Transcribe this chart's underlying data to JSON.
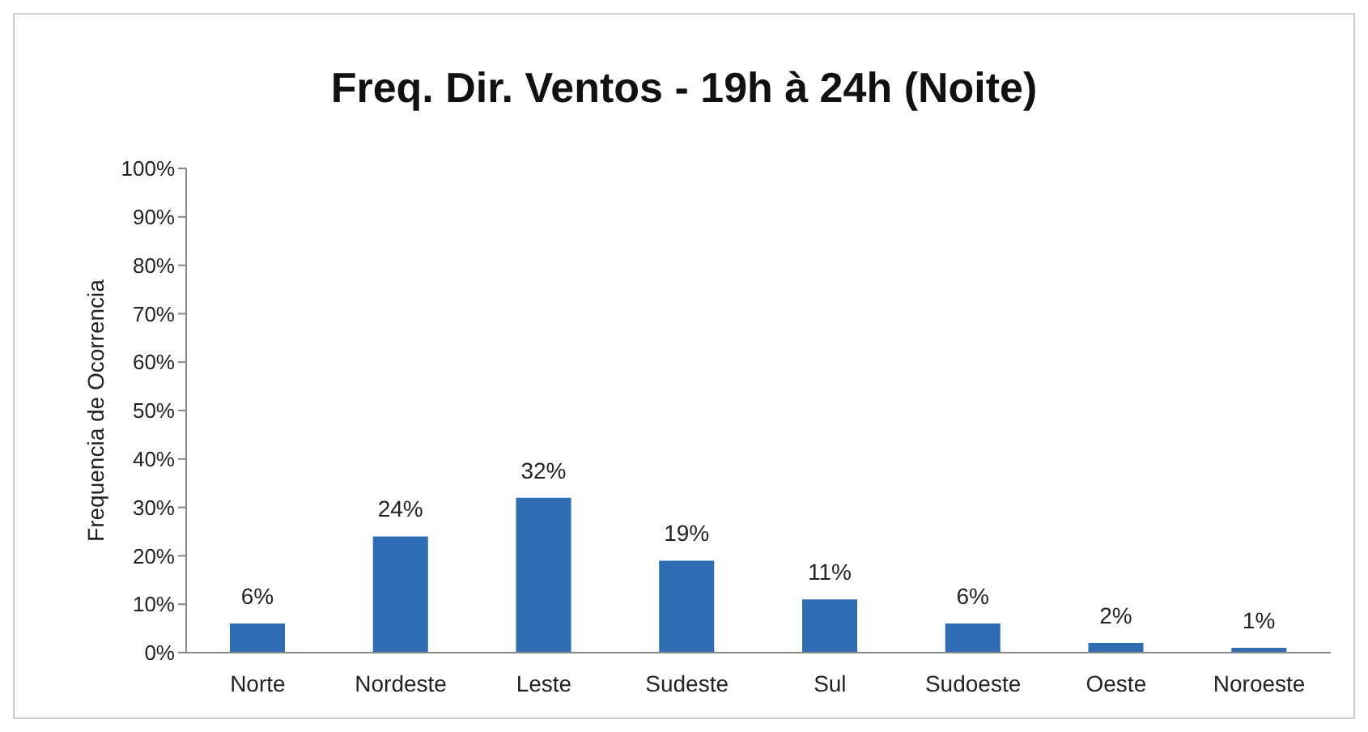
{
  "chart_data": {
    "type": "bar",
    "title": "Freq. Dir. Ventos - 19h à 24h (Noite)",
    "ylabel": "Frequencia de Ocorrencia",
    "categories": [
      "Norte",
      "Nordeste",
      "Leste",
      "Sudeste",
      "Sul",
      "Sudoeste",
      "Oeste",
      "Noroeste"
    ],
    "values": [
      6,
      24,
      32,
      19,
      11,
      6,
      2,
      1
    ],
    "value_labels": [
      "6%",
      "24%",
      "32%",
      "19%",
      "11%",
      "6%",
      "2%",
      "1%"
    ],
    "color": "#2e6db4",
    "ylim": [
      0,
      100
    ],
    "yticks": [
      {
        "value": 0,
        "label": "0%"
      },
      {
        "value": 10,
        "label": "10%"
      },
      {
        "value": 20,
        "label": "20%"
      },
      {
        "value": 30,
        "label": "30%"
      },
      {
        "value": 40,
        "label": "40%"
      },
      {
        "value": 50,
        "label": "50%"
      },
      {
        "value": 60,
        "label": "60%"
      },
      {
        "value": 70,
        "label": "70%"
      },
      {
        "value": 80,
        "label": "80%"
      },
      {
        "value": 90,
        "label": "90%"
      },
      {
        "value": 100,
        "label": "100%"
      }
    ],
    "grid": false,
    "legend": false
  }
}
